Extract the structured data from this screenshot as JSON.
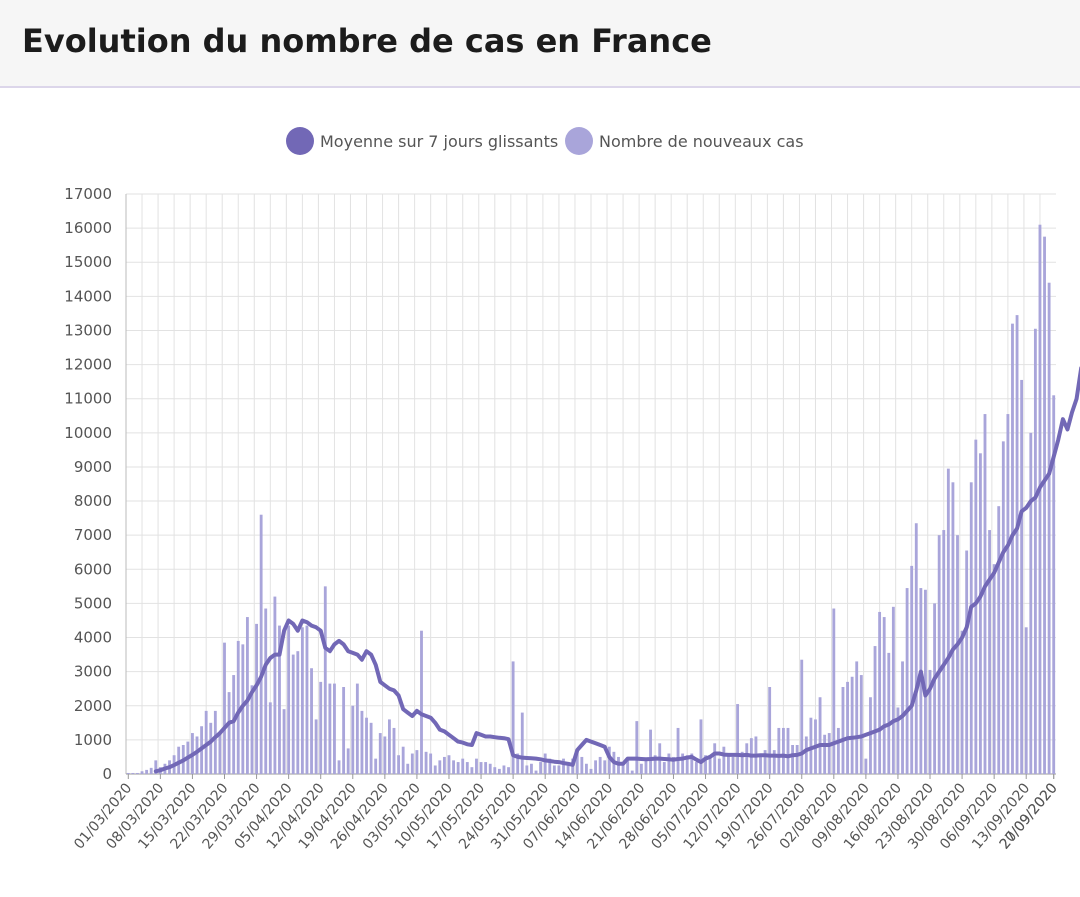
{
  "header": {
    "title": "Evolution du nombre de cas en France"
  },
  "colors": {
    "line": "#7268b6",
    "bar": "#a9a5da",
    "grid": "#e2e2e2",
    "axis": "#555555"
  },
  "chart_data": {
    "type": "bar",
    "title": "Evolution du nombre de cas en France",
    "xlabel": "",
    "ylabel": "",
    "ylim": [
      0,
      17000
    ],
    "yticks": [
      0,
      1000,
      2000,
      3000,
      4000,
      5000,
      6000,
      7000,
      8000,
      9000,
      10000,
      11000,
      12000,
      13000,
      14000,
      15000,
      16000,
      17000
    ],
    "x_start": "01/03/2020",
    "x_end": "29/09/2020",
    "xtick_labels": [
      "01/03/2020",
      "08/03/2020",
      "15/03/2020",
      "22/03/2020",
      "29/03/2020",
      "05/04/2020",
      "12/04/2020",
      "19/04/2020",
      "26/04/2020",
      "03/05/2020",
      "10/05/2020",
      "17/05/2020",
      "24/05/2020",
      "31/05/2020",
      "07/06/2020",
      "14/06/2020",
      "21/06/2020",
      "28/06/2020",
      "05/07/2020",
      "12/07/2020",
      "19/07/2020",
      "26/07/2020",
      "02/08/2020",
      "09/08/2020",
      "16/08/2020",
      "23/08/2020",
      "30/08/2020",
      "06/09/2020",
      "13/09/2020",
      "20/09/2020",
      "27/09/2020"
    ],
    "legend": [
      {
        "name": "Moyenne sur 7 jours glissants",
        "type": "line"
      },
      {
        "name": "Nombre de nouveaux cas",
        "type": "bar"
      }
    ],
    "series": [
      {
        "name": "Nombre de nouveaux cas",
        "type": "bar",
        "values": [
          30,
          30,
          30,
          80,
          120,
          180,
          400,
          200,
          300,
          400,
          550,
          800,
          850,
          950,
          1200,
          1100,
          1400,
          1850,
          1500,
          1850,
          1200,
          3850,
          2400,
          2900,
          3900,
          3800,
          4600,
          2600,
          4400,
          7600,
          4850,
          2100,
          5200,
          4350,
          1900,
          4350,
          3500,
          3600,
          4300,
          4350,
          3100,
          1600,
          2700,
          5500,
          2650,
          2650,
          400,
          2550,
          750,
          2000,
          2650,
          1850,
          1650,
          1500,
          450,
          1200,
          1100,
          1600,
          1350,
          550,
          800,
          300,
          600,
          700,
          4200,
          650,
          600,
          250,
          400,
          500,
          550,
          400,
          350,
          450,
          350,
          200,
          450,
          350,
          350,
          300,
          200,
          150,
          250,
          200,
          3300,
          600,
          1800,
          250,
          300,
          100,
          350,
          600,
          450,
          250,
          250,
          450,
          350,
          450,
          700,
          500,
          300,
          150,
          400,
          500,
          400,
          800,
          650,
          500,
          350,
          400,
          100,
          1550,
          300,
          400,
          1300,
          550,
          900,
          350,
          600,
          500,
          1350,
          600,
          550,
          600,
          350,
          1600,
          550,
          550,
          900,
          450,
          800,
          600,
          500,
          2050,
          650,
          900,
          1050,
          1100,
          600,
          700,
          2550,
          700,
          1350,
          1350,
          1350,
          850,
          850,
          3350,
          1100,
          1650,
          1600,
          2250,
          1150,
          1200,
          4850,
          1350,
          2550,
          2700,
          2850,
          3300,
          2900,
          450,
          2250,
          3750,
          4750,
          4600,
          3550,
          4900,
          1950,
          3300,
          5450,
          6100,
          7350,
          5450,
          5400,
          3050,
          5000,
          7000,
          7150,
          8950,
          8550,
          7000,
          4200,
          6550,
          8550,
          9800,
          9400,
          10550,
          7150,
          6150,
          7850,
          9750,
          10550,
          13200,
          13450,
          11550,
          4300,
          10000,
          13050,
          16100,
          15750,
          14400,
          11100
        ]
      },
      {
        "name": "Moyenne sur 7 jours glissants",
        "type": "line",
        "values": [
          null,
          null,
          null,
          null,
          null,
          null,
          80,
          110,
          160,
          200,
          260,
          330,
          400,
          480,
          560,
          650,
          750,
          850,
          950,
          1080,
          1200,
          1350,
          1500,
          1550,
          1800,
          2000,
          2150,
          2400,
          2600,
          2850,
          3200,
          3400,
          3500,
          3500,
          4200,
          4500,
          4400,
          4200,
          4500,
          4450,
          4350,
          4300,
          4200,
          3700,
          3600,
          3800,
          3900,
          3800,
          3600,
          3550,
          3500,
          3350,
          3600,
          3500,
          3200,
          2700,
          2600,
          2500,
          2450,
          2300,
          1900,
          1800,
          1700,
          1850,
          1750,
          1700,
          1650,
          1500,
          1300,
          1250,
          1150,
          1050,
          950,
          920,
          870,
          850,
          1200,
          1150,
          1100,
          1100,
          1080,
          1060,
          1050,
          1020,
          550,
          500,
          480,
          470,
          460,
          450,
          430,
          400,
          380,
          360,
          350,
          320,
          300,
          270,
          700,
          850,
          1000,
          950,
          900,
          850,
          800,
          500,
          350,
          300,
          300,
          450,
          450,
          450,
          440,
          430,
          440,
          450,
          450,
          440,
          430,
          420,
          440,
          450,
          480,
          500,
          420,
          350,
          450,
          500,
          600,
          600,
          570,
          560,
          560,
          560,
          550,
          560,
          540,
          540,
          550,
          550,
          540,
          540,
          530,
          540,
          520,
          550,
          560,
          600,
          700,
          750,
          800,
          850,
          850,
          850,
          900,
          950,
          1000,
          1050,
          1060,
          1080,
          1100,
          1150,
          1200,
          1250,
          1300,
          1400,
          1450,
          1550,
          1600,
          1700,
          1850,
          2000,
          2450,
          3000,
          2300,
          2500,
          2800,
          3000,
          3200,
          3400,
          3650,
          3800,
          4000,
          4300,
          4900,
          5000,
          5200,
          5500,
          5700,
          5900,
          6200,
          6500,
          6700,
          7000,
          7200,
          7700,
          7800,
          8000,
          8100,
          8400,
          8600,
          8800,
          9300,
          9800,
          10400,
          10100,
          10600,
          11000,
          11900,
          12100,
          12200,
          12150
        ]
      }
    ]
  }
}
